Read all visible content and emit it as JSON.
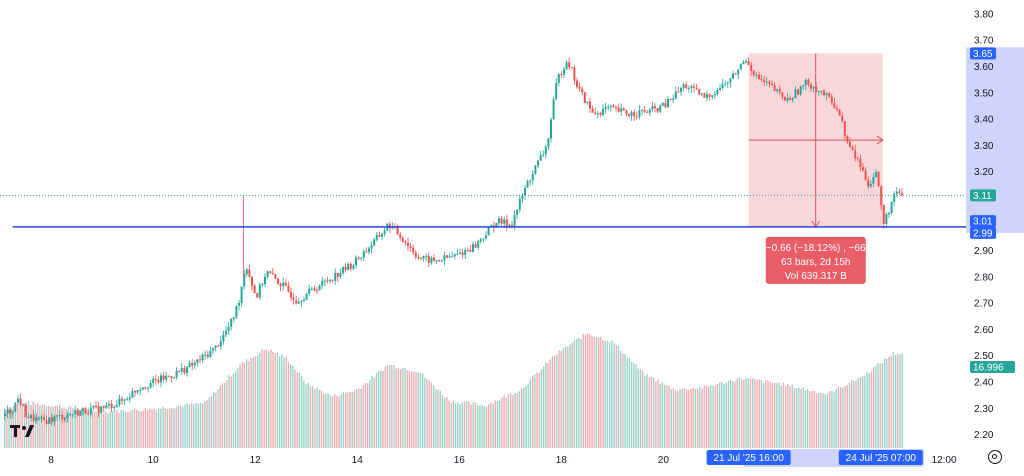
{
  "chart_data": {
    "type": "candlestick",
    "symbol": "",
    "y_axis": {
      "min": 2.13,
      "max": 3.83,
      "ticks": [
        "3.80",
        "3.70",
        "3.60",
        "3.50",
        "3.40",
        "3.30",
        "3.20",
        "2.90",
        "2.80",
        "2.70",
        "2.60",
        "2.50",
        "2.40",
        "2.30",
        "2.20"
      ]
    },
    "x_axis": {
      "labels": [
        {
          "text": "8",
          "x": 8
        },
        {
          "text": "10",
          "x": 10
        },
        {
          "text": "12",
          "x": 12
        },
        {
          "text": "14",
          "x": 14
        },
        {
          "text": "16",
          "x": 16
        },
        {
          "text": "18",
          "x": 18
        },
        {
          "text": "20",
          "x": 20
        },
        {
          "text": "12:00",
          "x": 25.5
        }
      ],
      "highlight_start": "21 Jul '25   16:00",
      "highlight_end": "24 Jul '25   07:00"
    },
    "price_tags": {
      "top": "3.65",
      "current": "3.11",
      "level_a": "3.01",
      "level_b": "2.99",
      "volume": "16.996"
    },
    "horizontal_line": {
      "value": 2.99,
      "from_x": 7.25
    },
    "measure": {
      "from_x": 21.67,
      "to_x": 24.3,
      "from_price": 3.65,
      "to_price": 2.99,
      "line1": "−0.66 (−18.12%) , −66",
      "line2": "63 bars,  2d 15h",
      "line3": "Vol 639.317 B"
    },
    "price_path": [
      [
        7.0,
        2.27
      ],
      [
        7.2,
        2.29
      ],
      [
        7.35,
        2.34
      ],
      [
        7.5,
        2.27
      ],
      [
        7.8,
        2.25
      ],
      [
        8.2,
        2.27
      ],
      [
        8.6,
        2.29
      ],
      [
        9.0,
        2.3
      ],
      [
        9.4,
        2.33
      ],
      [
        9.7,
        2.38
      ],
      [
        10.0,
        2.4
      ],
      [
        10.4,
        2.43
      ],
      [
        10.8,
        2.47
      ],
      [
        11.2,
        2.53
      ],
      [
        11.5,
        2.62
      ],
      [
        11.65,
        2.7
      ],
      [
        11.8,
        2.85
      ],
      [
        12.0,
        2.72
      ],
      [
        12.2,
        2.82
      ],
      [
        12.5,
        2.77
      ],
      [
        12.8,
        2.71
      ],
      [
        13.1,
        2.75
      ],
      [
        13.5,
        2.8
      ],
      [
        13.9,
        2.85
      ],
      [
        14.3,
        2.93
      ],
      [
        14.6,
        3.0
      ],
      [
        14.9,
        2.94
      ],
      [
        15.2,
        2.87
      ],
      [
        15.5,
        2.86
      ],
      [
        15.9,
        2.88
      ],
      [
        16.3,
        2.92
      ],
      [
        16.7,
        3.01
      ],
      [
        17.0,
        3.0
      ],
      [
        17.3,
        3.15
      ],
      [
        17.7,
        3.3
      ],
      [
        17.9,
        3.55
      ],
      [
        18.1,
        3.63
      ],
      [
        18.3,
        3.52
      ],
      [
        18.6,
        3.42
      ],
      [
        18.9,
        3.44
      ],
      [
        19.3,
        3.42
      ],
      [
        19.7,
        3.43
      ],
      [
        20.0,
        3.45
      ],
      [
        20.4,
        3.53
      ],
      [
        20.8,
        3.48
      ],
      [
        21.3,
        3.55
      ],
      [
        21.6,
        3.63
      ],
      [
        21.8,
        3.56
      ],
      [
        22.1,
        3.52
      ],
      [
        22.4,
        3.47
      ],
      [
        22.8,
        3.54
      ],
      [
        23.1,
        3.5
      ],
      [
        23.4,
        3.44
      ],
      [
        23.6,
        3.3
      ],
      [
        23.8,
        3.24
      ],
      [
        24.0,
        3.15
      ],
      [
        24.15,
        3.2
      ],
      [
        24.3,
        3.0
      ],
      [
        24.5,
        3.11
      ]
    ],
    "volume_profile": [
      [
        7.0,
        0.32
      ],
      [
        7.5,
        0.38
      ],
      [
        8.0,
        0.36
      ],
      [
        9.0,
        0.3
      ],
      [
        10.0,
        0.33
      ],
      [
        11.0,
        0.38
      ],
      [
        11.7,
        0.72
      ],
      [
        12.2,
        0.86
      ],
      [
        12.6,
        0.78
      ],
      [
        13.0,
        0.55
      ],
      [
        13.5,
        0.44
      ],
      [
        14.0,
        0.5
      ],
      [
        14.6,
        0.72
      ],
      [
        15.2,
        0.66
      ],
      [
        15.8,
        0.4
      ],
      [
        16.5,
        0.36
      ],
      [
        17.2,
        0.5
      ],
      [
        17.9,
        0.82
      ],
      [
        18.5,
        1.0
      ],
      [
        19.0,
        0.92
      ],
      [
        19.6,
        0.64
      ],
      [
        20.2,
        0.5
      ],
      [
        20.8,
        0.52
      ],
      [
        21.5,
        0.6
      ],
      [
        22.3,
        0.55
      ],
      [
        23.2,
        0.46
      ],
      [
        23.9,
        0.62
      ],
      [
        24.5,
        0.82
      ]
    ]
  }
}
